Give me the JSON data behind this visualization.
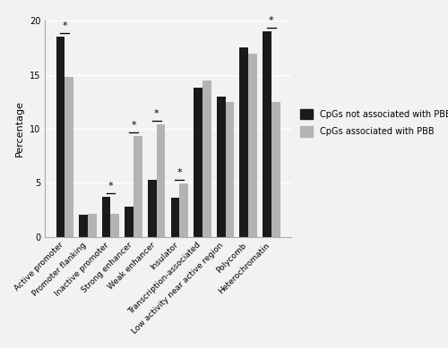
{
  "categories": [
    "Active promoter",
    "Promoter flanking",
    "Inactive promoter",
    "Strong enhancer",
    "Weak enhancer",
    "Insulator",
    "Transcription-associated",
    "Low activity near active region",
    "Polycomb",
    "Heterochromatin"
  ],
  "not_associated": [
    18.5,
    2.0,
    3.7,
    2.8,
    5.3,
    3.6,
    13.8,
    13.0,
    17.5,
    19.0
  ],
  "associated": [
    14.8,
    2.1,
    2.1,
    9.3,
    10.4,
    4.9,
    14.5,
    12.5,
    17.0,
    12.5
  ],
  "significance": [
    true,
    false,
    true,
    true,
    true,
    true,
    false,
    false,
    false,
    true
  ],
  "bar_color_dark": "#1a1a1a",
  "bar_color_light": "#b3b3b3",
  "ylabel": "Percentage",
  "ylim": [
    0,
    20
  ],
  "yticks": [
    0,
    5,
    10,
    15,
    20
  ],
  "legend_labels": [
    "CpGs not associated with PBB",
    "CpGs associated with PBB"
  ],
  "background_color": "#f2f2f2",
  "grid_color": "#ffffff",
  "spine_color": "#aaaaaa"
}
